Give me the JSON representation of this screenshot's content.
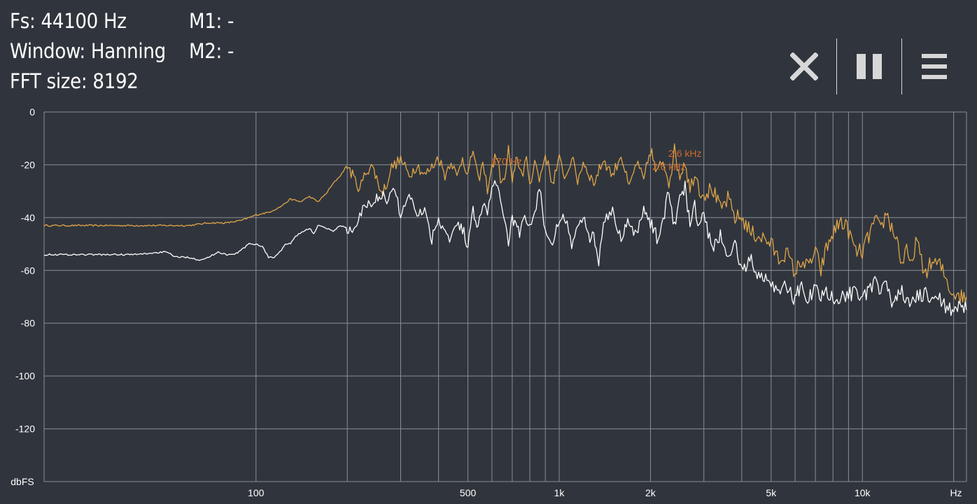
{
  "info": {
    "fs": "Fs: 44100 Hz",
    "window": "Window: Hanning",
    "fft_size": "FFT size: 8192",
    "m1": "M1: -",
    "m2": "M2: -"
  },
  "toolbar": {
    "close_icon": "close-icon",
    "pause_icon": "pause-icon",
    "menu_icon": "menu-icon"
  },
  "colors": {
    "background": "#30353d",
    "grid": "#8a8e94",
    "peak_series": "#e0a547",
    "current_series": "#ffffff",
    "marker_text": "#cf6a2c"
  },
  "chart_data": {
    "type": "line",
    "x_scale": "log",
    "xlim": [
      20,
      22050
    ],
    "ylim": [
      -140,
      0
    ],
    "xlabel": "Hz",
    "ylabel": "dbFS",
    "y_ticks": [
      {
        "value": 0,
        "label": "0"
      },
      {
        "value": -20,
        "label": "-20"
      },
      {
        "value": -40,
        "label": "-40"
      },
      {
        "value": -60,
        "label": "-60"
      },
      {
        "value": -80,
        "label": "-80"
      },
      {
        "value": -100,
        "label": "-100"
      },
      {
        "value": -120,
        "label": "-120"
      }
    ],
    "x_tick_labels": [
      {
        "value": 100,
        "label": "100"
      },
      {
        "value": 500,
        "label": "500"
      },
      {
        "value": 1000,
        "label": "1k"
      },
      {
        "value": 2000,
        "label": "2k"
      },
      {
        "value": 5000,
        "label": "5k"
      },
      {
        "value": 10000,
        "label": "10k"
      }
    ],
    "x_gridlines": [
      100,
      200,
      300,
      400,
      500,
      600,
      700,
      800,
      900,
      1000,
      2000,
      3000,
      4000,
      5000,
      6000,
      7000,
      8000,
      9000,
      10000,
      20000
    ],
    "grid": true,
    "annotations": [
      {
        "label": "670 Hz",
        "x": 670,
        "y": -20
      },
      {
        "label": "2.6  kHz",
        "x": 2600,
        "y": -17
      },
      {
        "label": "2.6  kHz",
        "x": 2300,
        "y": -22
      }
    ],
    "series": [
      {
        "color": "#e0a547",
        "x": [
          20,
          30,
          40,
          50,
          60,
          70,
          80,
          90,
          100,
          110,
          120,
          130,
          140,
          150,
          160,
          170,
          180,
          190,
          200,
          210,
          220,
          230,
          240,
          250,
          260,
          270,
          280,
          300,
          320,
          340,
          360,
          380,
          400,
          420,
          440,
          460,
          480,
          500,
          520,
          540,
          560,
          580,
          600,
          620,
          640,
          660,
          680,
          700,
          720,
          740,
          760,
          780,
          800,
          830,
          860,
          900,
          950,
          1000,
          1050,
          1100,
          1150,
          1200,
          1300,
          1400,
          1500,
          1600,
          1700,
          1800,
          1900,
          2000,
          2100,
          2200,
          2300,
          2400,
          2500,
          2600,
          2700,
          2800,
          2900,
          3000,
          3200,
          3400,
          3600,
          3800,
          4000,
          4300,
          4600,
          5000,
          5300,
          5600,
          6000,
          6300,
          6600,
          7000,
          7300,
          7600,
          8000,
          8500,
          9000,
          9500,
          10000,
          10500,
          11000,
          11500,
          12000,
          12500,
          13000,
          13500,
          14000,
          14500,
          15000,
          16000,
          17000,
          18000,
          19000,
          19500,
          20000,
          20500,
          21000,
          22050
        ],
        "y": [
          -43,
          -43,
          -43,
          -43,
          -43,
          -42,
          -42,
          -41,
          -39,
          -38,
          -36,
          -33,
          -34,
          -32,
          -34,
          -31,
          -27,
          -24,
          -20,
          -25,
          -29,
          -23,
          -20,
          -25,
          -31,
          -27,
          -21,
          -18,
          -24,
          -20,
          -24,
          -21,
          -17,
          -24,
          -18,
          -25,
          -17,
          -24,
          -14,
          -26,
          -20,
          -29,
          -21,
          -16,
          -25,
          -27,
          -14,
          -28,
          -17,
          -20,
          -26,
          -16,
          -28,
          -18,
          -26,
          -16,
          -27,
          -18,
          -25,
          -17,
          -26,
          -19,
          -27,
          -18,
          -24,
          -16,
          -29,
          -19,
          -26,
          -14,
          -24,
          -18,
          -26,
          -15,
          -24,
          -18,
          -30,
          -22,
          -29,
          -31,
          -29,
          -37,
          -33,
          -40,
          -40,
          -46,
          -47,
          -50,
          -56,
          -53,
          -61,
          -56,
          -59,
          -53,
          -60,
          -52,
          -46,
          -41,
          -45,
          -53,
          -53,
          -47,
          -41,
          -45,
          -38,
          -44,
          -48,
          -58,
          -53,
          -59,
          -48,
          -61,
          -57,
          -58,
          -64,
          -67,
          -69,
          -68,
          -70,
          -70
        ]
      },
      {
        "color": "#ffffff",
        "x": [
          20,
          30,
          40,
          50,
          55,
          60,
          65,
          70,
          75,
          80,
          85,
          90,
          95,
          100,
          105,
          110,
          115,
          120,
          125,
          130,
          135,
          140,
          145,
          150,
          155,
          160,
          170,
          180,
          190,
          200,
          210,
          220,
          230,
          240,
          250,
          260,
          270,
          280,
          290,
          300,
          320,
          340,
          360,
          380,
          400,
          420,
          440,
          460,
          480,
          500,
          520,
          540,
          560,
          580,
          600,
          620,
          640,
          660,
          680,
          700,
          720,
          740,
          760,
          780,
          800,
          830,
          860,
          900,
          950,
          1000,
          1050,
          1100,
          1150,
          1200,
          1250,
          1300,
          1350,
          1400,
          1500,
          1600,
          1700,
          1800,
          1900,
          2000,
          2100,
          2200,
          2300,
          2400,
          2500,
          2600,
          2700,
          2800,
          2900,
          3000,
          3200,
          3400,
          3600,
          3800,
          4000,
          4300,
          4600,
          5000,
          5300,
          5600,
          6000,
          6300,
          6600,
          7000,
          7300,
          7600,
          8000,
          8500,
          9000,
          9500,
          10000,
          10500,
          11000,
          11500,
          12000,
          12500,
          13000,
          13500,
          14000,
          15000,
          16000,
          17000,
          18000,
          19000,
          20000,
          21000,
          22050
        ],
        "y": [
          -54,
          -54,
          -54,
          -53,
          -55,
          -55,
          -56,
          -55,
          -53,
          -54,
          -54,
          -52,
          -50,
          -50,
          -51,
          -55,
          -55,
          -53,
          -50,
          -50,
          -47,
          -46,
          -45,
          -44,
          -46,
          -43,
          -44,
          -45,
          -43,
          -44,
          -46,
          -40,
          -34,
          -36,
          -32,
          -31,
          -35,
          -29,
          -32,
          -39,
          -31,
          -38,
          -37,
          -48,
          -40,
          -45,
          -48,
          -42,
          -44,
          -51,
          -37,
          -43,
          -36,
          -37,
          -30,
          -26,
          -34,
          -40,
          -49,
          -40,
          -44,
          -46,
          -42,
          -40,
          -44,
          -40,
          -28,
          -45,
          -49,
          -42,
          -40,
          -50,
          -45,
          -39,
          -48,
          -47,
          -57,
          -40,
          -38,
          -47,
          -41,
          -47,
          -36,
          -42,
          -48,
          -41,
          -31,
          -42,
          -33,
          -28,
          -43,
          -36,
          -44,
          -39,
          -52,
          -47,
          -55,
          -50,
          -60,
          -56,
          -63,
          -64,
          -68,
          -66,
          -71,
          -65,
          -71,
          -67,
          -70,
          -66,
          -72,
          -69,
          -70,
          -66,
          -70,
          -69,
          -64,
          -68,
          -67,
          -71,
          -70,
          -66,
          -73,
          -71,
          -69,
          -72,
          -71,
          -74,
          -74,
          -75,
          -75
        ]
      }
    ]
  }
}
